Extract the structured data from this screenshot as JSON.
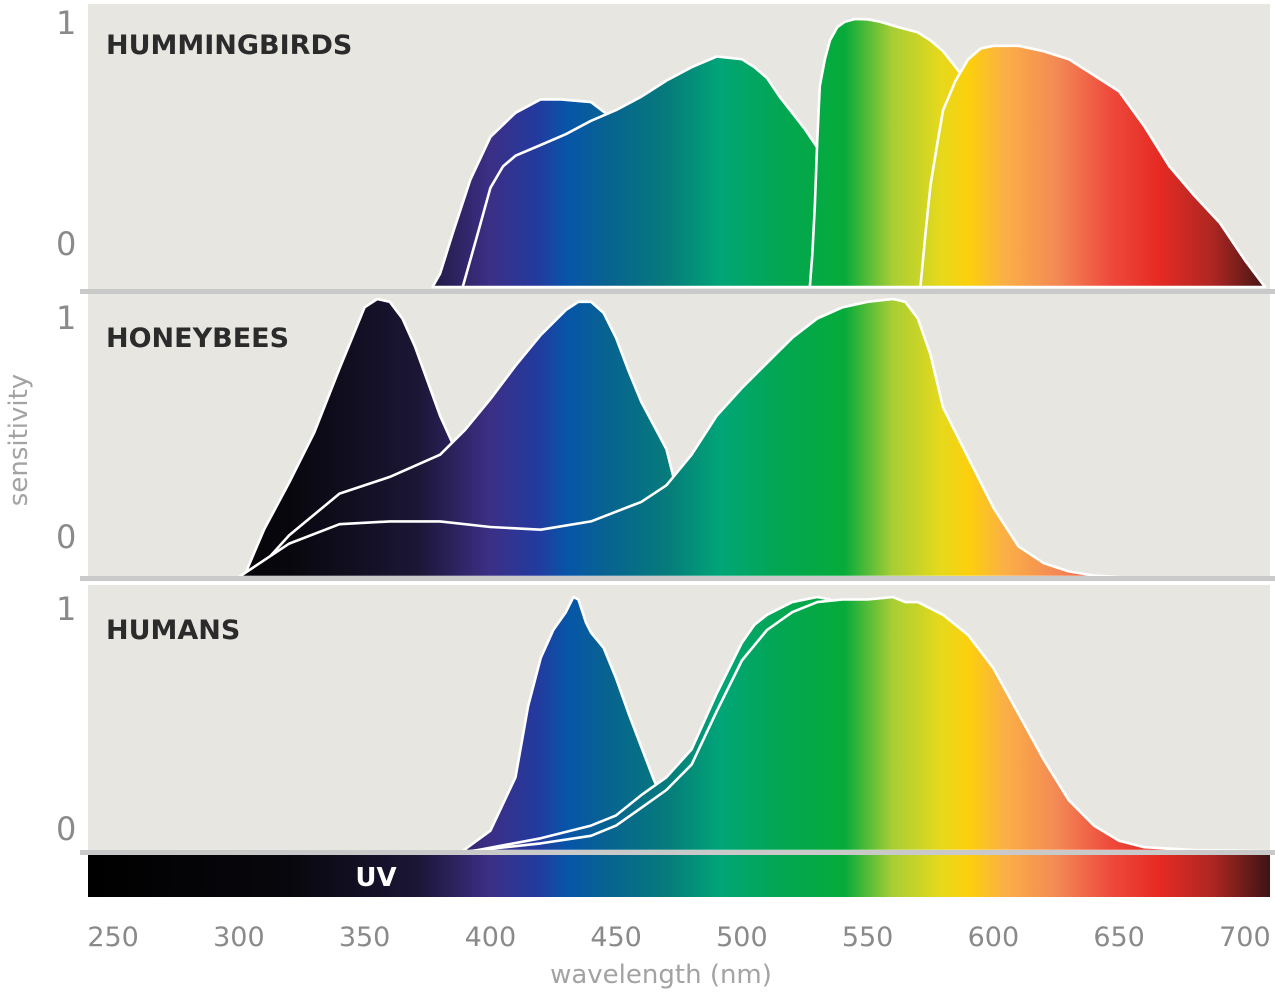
{
  "chart_data": {
    "type": "area",
    "xlabel": "wavelength (nm)",
    "ylabel": "sensitivity",
    "xlim": [
      240,
      710
    ],
    "x_ticks": [
      "250",
      "300",
      "350",
      "400",
      "450",
      "500",
      "550",
      "600",
      "650",
      "700"
    ],
    "y_tick_top": "1",
    "y_tick_bottom": "0",
    "spectrum_band_label": "UV",
    "colors": {
      "panel_background": "#e7e6e1",
      "separator": "#c9c9c9",
      "curve_outline": "#ffffff"
    },
    "panels": [
      {
        "title": "HUMMINGBIRDS",
        "series": [
          {
            "x": [
              377,
              380,
              385,
              392,
              400,
              410,
              420,
              428,
              440,
              447,
              453,
              460,
              465,
              471,
              476,
              480
            ],
            "y": [
              0.0,
              0.05,
              0.2,
              0.4,
              0.56,
              0.65,
              0.7,
              0.7,
              0.69,
              0.64,
              0.55,
              0.4,
              0.27,
              0.14,
              0.05,
              0.0
            ]
          },
          {
            "x": [
              389,
              395,
              400,
              405,
              410,
              420,
              430,
              440,
              450,
              460,
              470,
              480,
              490,
              500,
              505,
              510,
              515,
              520,
              525,
              530,
              535,
              540,
              545,
              550,
              555,
              560,
              565,
              570,
              575,
              578
            ],
            "y": [
              0.0,
              0.2,
              0.37,
              0.45,
              0.49,
              0.53,
              0.57,
              0.62,
              0.66,
              0.71,
              0.77,
              0.82,
              0.86,
              0.85,
              0.82,
              0.78,
              0.71,
              0.65,
              0.59,
              0.52,
              0.43,
              0.35,
              0.27,
              0.19,
              0.13,
              0.08,
              0.04,
              0.02,
              0.005,
              0.0
            ]
          },
          {
            "x": [
              527,
              528,
              529,
              530,
              531,
              533,
              535,
              538,
              541,
              545,
              550,
              555,
              562,
              570,
              575,
              580,
              585,
              590,
              600,
              610,
              620,
              630,
              640,
              650,
              656
            ],
            "y": [
              0.0,
              0.12,
              0.3,
              0.55,
              0.75,
              0.85,
              0.92,
              0.97,
              0.99,
              1.0,
              0.999,
              0.99,
              0.97,
              0.95,
              0.92,
              0.88,
              0.82,
              0.76,
              0.66,
              0.54,
              0.42,
              0.3,
              0.18,
              0.07,
              0.0
            ]
          },
          {
            "x": [
              571,
              573,
              575,
              578,
              580,
              585,
              590,
              595,
              600,
              610,
              620,
              630,
              640,
              650,
              660,
              670,
              680,
              690,
              700,
              708
            ],
            "y": [
              0.0,
              0.2,
              0.38,
              0.55,
              0.66,
              0.77,
              0.85,
              0.89,
              0.9,
              0.9,
              0.88,
              0.85,
              0.79,
              0.73,
              0.6,
              0.45,
              0.34,
              0.24,
              0.1,
              0.0
            ]
          }
        ]
      },
      {
        "title": "HONEYBEES",
        "series": [
          {
            "x": [
              302,
              310,
              320,
              330,
              340,
              345,
              350,
              355,
              360,
              365,
              370,
              380,
              390,
              400,
              410,
              420,
              430,
              440,
              450,
              460,
              480,
              500,
              530
            ],
            "y": [
              0.0,
              0.17,
              0.34,
              0.52,
              0.75,
              0.86,
              0.97,
              1.0,
              0.99,
              0.93,
              0.83,
              0.58,
              0.38,
              0.25,
              0.15,
              0.09,
              0.05,
              0.03,
              0.02,
              0.012,
              0.006,
              0.002,
              0.0
            ]
          },
          {
            "x": [
              305,
              320,
              340,
              360,
              380,
              390,
              400,
              410,
              420,
              430,
              435,
              440,
              445,
              450,
              455,
              460,
              470,
              475,
              480,
              490,
              500,
              510,
              520,
              530
            ],
            "y": [
              0.0,
              0.15,
              0.3,
              0.36,
              0.44,
              0.53,
              0.64,
              0.76,
              0.87,
              0.96,
              0.99,
              0.99,
              0.95,
              0.86,
              0.74,
              0.63,
              0.46,
              0.28,
              0.16,
              0.07,
              0.04,
              0.02,
              0.01,
              0.0
            ]
          },
          {
            "x": [
              300,
              320,
              340,
              360,
              380,
              400,
              420,
              440,
              460,
              470,
              480,
              490,
              500,
              510,
              520,
              530,
              540,
              550,
              560,
              565,
              570,
              575,
              580,
              590,
              600,
              610,
              620,
              630,
              640,
              650
            ],
            "y": [
              0.0,
              0.12,
              0.19,
              0.2,
              0.2,
              0.18,
              0.17,
              0.2,
              0.27,
              0.33,
              0.44,
              0.58,
              0.68,
              0.77,
              0.86,
              0.93,
              0.97,
              0.99,
              1.0,
              0.99,
              0.93,
              0.8,
              0.61,
              0.43,
              0.25,
              0.11,
              0.05,
              0.02,
              0.005,
              0.0
            ]
          }
        ]
      },
      {
        "title": "HUMANS",
        "series": [
          {
            "x": [
              389,
              400,
              410,
              415,
              420,
              425,
              430,
              433,
              435,
              438,
              440,
              445,
              450,
              455,
              460,
              465,
              470,
              475,
              480,
              490,
              500,
              510,
              520,
              530
            ],
            "y": [
              0.0,
              0.08,
              0.29,
              0.57,
              0.76,
              0.87,
              0.94,
              1.0,
              0.99,
              0.9,
              0.86,
              0.8,
              0.68,
              0.54,
              0.41,
              0.28,
              0.17,
              0.1,
              0.06,
              0.03,
              0.015,
              0.007,
              0.002,
              0.0
            ]
          },
          {
            "x": [
              393,
              420,
              440,
              450,
              460,
              470,
              480,
              490,
              495,
              500,
              505,
              510,
              520,
              530,
              535,
              540,
              545,
              550,
              560,
              570,
              580,
              590,
              600,
              610,
              620,
              627
            ],
            "y": [
              0.0,
              0.05,
              0.1,
              0.14,
              0.22,
              0.29,
              0.4,
              0.62,
              0.72,
              0.82,
              0.89,
              0.93,
              0.98,
              1.0,
              0.99,
              0.96,
              0.9,
              0.84,
              0.69,
              0.51,
              0.33,
              0.19,
              0.1,
              0.03,
              0.01,
              0.0
            ]
          },
          {
            "x": [
              392,
              420,
              440,
              450,
              460,
              470,
              480,
              490,
              500,
              510,
              520,
              530,
              540,
              550,
              560,
              565,
              570,
              580,
              590,
              600,
              610,
              620,
              630,
              640,
              650,
              660,
              680,
              708
            ],
            "y": [
              0.0,
              0.03,
              0.06,
              0.1,
              0.17,
              0.24,
              0.34,
              0.55,
              0.75,
              0.87,
              0.94,
              0.98,
              0.99,
              0.99,
              1.0,
              0.98,
              0.98,
              0.93,
              0.85,
              0.72,
              0.54,
              0.36,
              0.2,
              0.1,
              0.04,
              0.015,
              0.004,
              0.0
            ]
          }
        ]
      }
    ]
  }
}
